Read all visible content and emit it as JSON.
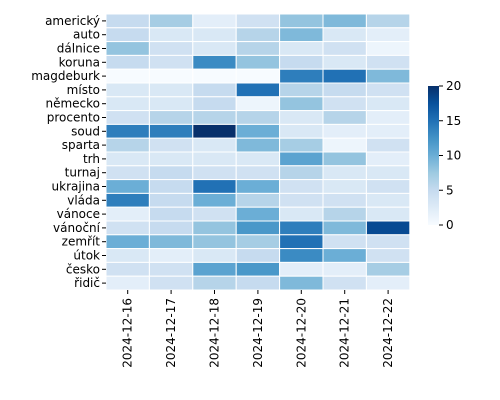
{
  "chart_data": {
    "type": "heatmap",
    "rows": [
      "americký",
      "auto",
      "dálnice",
      "koruna",
      "magdeburk",
      "místo",
      "německo",
      "procento",
      "soud",
      "sparta",
      "trh",
      "turnaj",
      "ukrajina",
      "vláda",
      "vánoce",
      "vánoční",
      "zemřít",
      "útok",
      "česko",
      "řidič"
    ],
    "columns": [
      "2024-12-16",
      "2024-12-17",
      "2024-12-18",
      "2024-12-19",
      "2024-12-20",
      "2024-12-21",
      "2024-12-22"
    ],
    "values": [
      [
        5,
        7,
        2,
        4,
        8,
        9,
        6
      ],
      [
        5,
        3,
        3,
        6,
        9,
        3,
        2
      ],
      [
        8,
        4,
        3,
        6,
        3,
        4,
        1
      ],
      [
        5,
        4,
        13,
        8,
        5,
        3,
        4
      ],
      [
        0,
        0,
        0,
        0,
        14,
        15,
        9
      ],
      [
        3,
        3,
        5,
        15,
        6,
        5,
        4
      ],
      [
        3,
        3,
        5,
        1,
        8,
        4,
        3
      ],
      [
        4,
        6,
        6,
        6,
        3,
        6,
        2
      ],
      [
        14,
        14,
        20,
        10,
        3,
        2,
        2
      ],
      [
        6,
        4,
        3,
        9,
        7,
        1,
        4
      ],
      [
        3,
        3,
        3,
        3,
        11,
        8,
        2
      ],
      [
        4,
        5,
        4,
        4,
        6,
        3,
        3
      ],
      [
        10,
        5,
        15,
        10,
        4,
        3,
        4
      ],
      [
        14,
        5,
        10,
        6,
        4,
        4,
        3
      ],
      [
        2,
        5,
        4,
        10,
        3,
        6,
        3
      ],
      [
        4,
        5,
        8,
        12,
        14,
        9,
        18
      ],
      [
        10,
        9,
        8,
        7,
        15,
        4,
        4
      ],
      [
        3,
        2,
        3,
        5,
        13,
        10,
        4
      ],
      [
        4,
        4,
        11,
        12,
        2,
        2,
        7
      ],
      [
        2,
        4,
        6,
        5,
        9,
        4,
        2
      ]
    ],
    "colorbar": {
      "ticks": [
        0,
        5,
        10,
        15,
        20
      ],
      "min": 0,
      "max": 20
    },
    "colormap": "Blues",
    "cell_border_color": "#ffffff"
  }
}
